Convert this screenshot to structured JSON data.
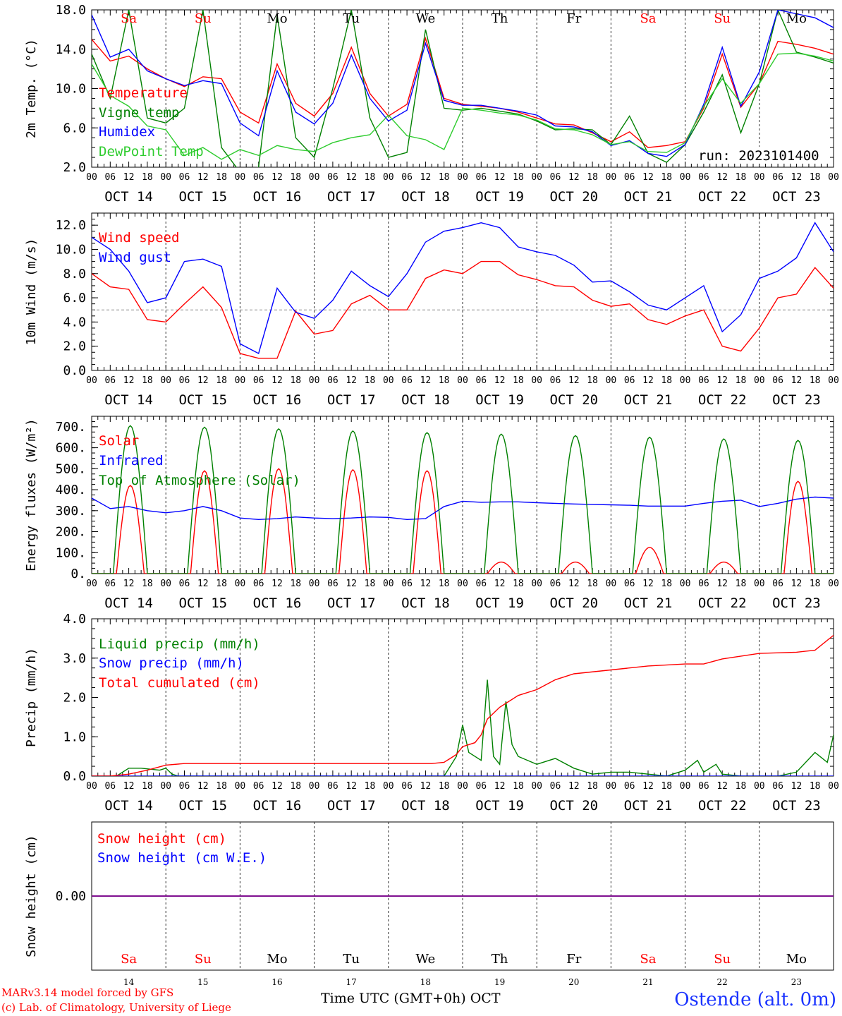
{
  "footer": {
    "credit1": "MARv3.14 model forced by GFS",
    "credit2": "(c) Lab. of Climatology, University of Liege",
    "x_title": "Time UTC (GMT+0h) OCT",
    "station": "Ostende (alt. 0m)"
  },
  "colors": {
    "red": "#ff0000",
    "green": "#008000",
    "blue": "#0000ff",
    "lightgreen": "#2ecc2e",
    "purple": "#800080",
    "grid": "#555555"
  },
  "chart_data": [
    {
      "type": "line",
      "ylabel": "2m Temp. (°C)",
      "ylim": [
        2,
        18
      ],
      "yticks": [
        "2.0",
        "6.0",
        "10.0",
        "14.0",
        "18.0"
      ],
      "run_label": "run: 2023101400",
      "day_letters": [
        "Sa",
        "Su",
        "Mo",
        "Tu",
        "We",
        "Th",
        "Fr",
        "Sa",
        "Su",
        "Mo"
      ],
      "day_letter_colors": [
        "red",
        "red",
        "black",
        "black",
        "black",
        "black",
        "black",
        "red",
        "red",
        "black"
      ],
      "hour_labels": [
        "00",
        "06",
        "12",
        "18"
      ],
      "date_labels": [
        "OCT 14",
        "OCT 15",
        "OCT 16",
        "OCT 17",
        "OCT 18",
        "OCT 19",
        "OCT 20",
        "OCT 21",
        "OCT 22",
        "OCT 23"
      ],
      "x_unit": "hours since 2023-10-14 00 UTC",
      "series": [
        {
          "name": "Temperature",
          "color": "red",
          "x": [
            0,
            6,
            12,
            18,
            24,
            30,
            36,
            42,
            48,
            54,
            60,
            66,
            72,
            78,
            84,
            90,
            96,
            102,
            108,
            114,
            120,
            126,
            132,
            138,
            144,
            150,
            156,
            162,
            168,
            174,
            180,
            186,
            192,
            198,
            204,
            210,
            216,
            222,
            228,
            234,
            240
          ],
          "values": [
            15,
            12.8,
            13.3,
            12,
            11,
            10.2,
            11.2,
            11,
            7.6,
            6.5,
            12.5,
            8.5,
            7.2,
            9.5,
            14.2,
            9.5,
            7.2,
            8.4,
            15.1,
            9,
            8.4,
            8.2,
            8,
            7.6,
            7,
            6.4,
            6.3,
            5.5,
            4.6,
            5.6,
            4,
            4.2,
            4.6,
            8,
            13.5,
            8.1,
            10.5,
            14.8,
            14.5,
            14.1,
            13.5
          ]
        },
        {
          "name": "Vigne temp",
          "color": "green",
          "x": [
            0,
            6,
            12,
            18,
            24,
            30,
            36,
            42,
            48,
            54,
            60,
            66,
            72,
            78,
            84,
            90,
            96,
            102,
            108,
            114,
            120,
            126,
            132,
            138,
            144,
            150,
            156,
            162,
            168,
            174,
            180,
            186,
            192,
            198,
            204,
            210,
            216,
            222,
            228,
            234,
            240
          ],
          "values": [
            13.5,
            9,
            18,
            7,
            6.5,
            8,
            18,
            4,
            1.5,
            2,
            17.5,
            5,
            3,
            10,
            18,
            7,
            3,
            3.5,
            16,
            8,
            7.8,
            8,
            7.7,
            7.4,
            6.7,
            5.8,
            5.9,
            5.8,
            4.3,
            7.2,
            3.4,
            2.5,
            4.3,
            7.6,
            11.4,
            5.5,
            10.5,
            18,
            13.7,
            13.2,
            12.6
          ]
        },
        {
          "name": "Humidex",
          "color": "blue",
          "x": [
            0,
            6,
            12,
            18,
            24,
            30,
            36,
            42,
            48,
            54,
            60,
            66,
            72,
            78,
            84,
            90,
            96,
            102,
            108,
            114,
            120,
            126,
            132,
            138,
            144,
            150,
            156,
            162,
            168,
            174,
            180,
            186,
            192,
            198,
            204,
            210,
            216,
            222,
            228,
            234,
            240
          ],
          "values": [
            17.5,
            13.2,
            14,
            11.8,
            11,
            10.3,
            10.8,
            10.5,
            6.5,
            5.2,
            11.8,
            7.6,
            6.4,
            8.5,
            13.4,
            9,
            6.7,
            7.8,
            14.6,
            8.8,
            8.3,
            8.3,
            8,
            7.7,
            7.3,
            6.2,
            6.1,
            5.6,
            4.2,
            4.7,
            3.4,
            3.1,
            4.3,
            8.4,
            14.2,
            8.2,
            11.7,
            18,
            17.6,
            17.2,
            16.2
          ]
        },
        {
          "name": "DewPoint Temp",
          "color": "lightgreen",
          "x": [
            0,
            6,
            12,
            18,
            24,
            30,
            36,
            42,
            48,
            54,
            60,
            66,
            72,
            78,
            84,
            90,
            96,
            102,
            108,
            114,
            120,
            126,
            132,
            138,
            144,
            150,
            156,
            162,
            168,
            174,
            180,
            186,
            192,
            198,
            204,
            210,
            216,
            222,
            228,
            234,
            240
          ],
          "values": [
            12.5,
            9.3,
            8.2,
            6.2,
            5.8,
            3.2,
            4,
            2.8,
            3.8,
            3.2,
            4.2,
            3.8,
            3.6,
            4.5,
            5,
            5.3,
            7.3,
            5.2,
            4.8,
            3.8,
            8,
            7.8,
            7.5,
            7.3,
            6.8,
            5.9,
            5.8,
            5.3,
            4.3,
            4.6,
            3.6,
            3.5,
            4.5,
            8.2,
            11,
            8.5,
            10.5,
            13.5,
            13.6,
            13.3,
            12.8
          ]
        }
      ]
    },
    {
      "type": "line",
      "ylabel": "10m Wind (m/s)",
      "ylim": [
        0,
        13
      ],
      "yticks": [
        "0.0",
        "2.0",
        "4.0",
        "6.0",
        "8.0",
        "10.0",
        "12.0"
      ],
      "reference_line": 5,
      "hour_labels": [
        "00",
        "06",
        "12",
        "18"
      ],
      "date_labels": [
        "OCT 14",
        "OCT 15",
        "OCT 16",
        "OCT 17",
        "OCT 18",
        "OCT 19",
        "OCT 20",
        "OCT 21",
        "OCT 22",
        "OCT 23"
      ],
      "series": [
        {
          "name": "Wind speed",
          "color": "red",
          "x": [
            0,
            6,
            12,
            18,
            24,
            30,
            36,
            42,
            48,
            54,
            60,
            66,
            72,
            78,
            84,
            90,
            96,
            102,
            108,
            114,
            120,
            126,
            132,
            138,
            144,
            150,
            156,
            162,
            168,
            174,
            180,
            186,
            192,
            198,
            204,
            210,
            216,
            222,
            228,
            234,
            240
          ],
          "values": [
            8,
            6.9,
            6.7,
            4.2,
            4,
            5.5,
            6.9,
            5.2,
            1.4,
            1,
            1,
            4.9,
            3,
            3.3,
            5.5,
            6.2,
            5,
            5,
            7.6,
            8.3,
            8,
            9,
            9,
            7.9,
            7.5,
            7,
            6.9,
            5.8,
            5.3,
            5.5,
            4.2,
            3.8,
            4.5,
            5,
            2,
            1.6,
            3.5,
            6,
            6.3,
            8.5,
            6.8
          ]
        },
        {
          "name": "Wind gust",
          "color": "blue",
          "x": [
            0,
            6,
            12,
            18,
            24,
            30,
            36,
            42,
            48,
            54,
            60,
            66,
            72,
            78,
            84,
            90,
            96,
            102,
            108,
            114,
            120,
            126,
            132,
            138,
            144,
            150,
            156,
            162,
            168,
            174,
            180,
            186,
            192,
            198,
            204,
            210,
            216,
            222,
            228,
            234,
            240
          ],
          "values": [
            11,
            10,
            8.2,
            5.6,
            6,
            9,
            9.2,
            8.6,
            2.2,
            1.4,
            6.8,
            4.8,
            4.3,
            5.8,
            8.2,
            7,
            6.1,
            8,
            10.6,
            11.5,
            11.8,
            12.2,
            11.8,
            10.2,
            9.8,
            9.5,
            8.7,
            7.3,
            7.4,
            6.5,
            5.4,
            5,
            6,
            7,
            3.2,
            4.6,
            7.6,
            8.2,
            9.3,
            12.2,
            9.8
          ]
        }
      ]
    },
    {
      "type": "line",
      "ylabel": "Energy fluxes (W/m²)",
      "ylim": [
        0,
        750
      ],
      "yticks": [
        "0.",
        "100.",
        "200.",
        "300.",
        "400.",
        "500.",
        "600.",
        "700."
      ],
      "hour_labels": [
        "00",
        "06",
        "12",
        "18"
      ],
      "date_labels": [
        "OCT 14",
        "OCT 15",
        "OCT 16",
        "OCT 17",
        "OCT 18",
        "OCT 19",
        "OCT 20",
        "OCT 21",
        "OCT 22",
        "OCT 23"
      ],
      "series": [
        {
          "name": "Solar",
          "color": "red",
          "daily_peaks": [
            420,
            490,
            500,
            495,
            490,
            55,
            55,
            125,
            55,
            440
          ]
        },
        {
          "name": "Infrared",
          "color": "blue",
          "x": [
            0,
            6,
            12,
            18,
            24,
            30,
            36,
            42,
            48,
            54,
            60,
            66,
            72,
            78,
            84,
            90,
            96,
            102,
            108,
            114,
            120,
            126,
            132,
            138,
            144,
            150,
            156,
            162,
            168,
            174,
            180,
            186,
            192,
            198,
            204,
            210,
            216,
            222,
            228,
            234,
            240
          ],
          "values": [
            360,
            310,
            320,
            300,
            290,
            300,
            320,
            300,
            265,
            258,
            262,
            270,
            265,
            262,
            265,
            270,
            268,
            258,
            262,
            320,
            345,
            340,
            342,
            342,
            338,
            335,
            332,
            330,
            328,
            326,
            322,
            322,
            322,
            335,
            345,
            350,
            320,
            335,
            355,
            365,
            360
          ]
        },
        {
          "name": "Top of Atmosphere (Solar)",
          "color": "green",
          "daily_peaks": [
            705,
            698,
            690,
            680,
            672,
            665,
            658,
            650,
            642,
            635
          ]
        }
      ]
    },
    {
      "type": "line",
      "ylabel": "Precip (mm/h)",
      "ylim": [
        0,
        4
      ],
      "yticks": [
        "0.0",
        "1.0",
        "2.0",
        "3.0",
        "4.0"
      ],
      "hour_labels": [
        "00",
        "06",
        "12",
        "18"
      ],
      "date_labels": [
        "OCT 14",
        "OCT 15",
        "OCT 16",
        "OCT 17",
        "OCT 18",
        "OCT 19",
        "OCT 20",
        "OCT 21",
        "OCT 22",
        "OCT 23"
      ],
      "series": [
        {
          "name": "Liquid precip (mm/h)",
          "color": "green",
          "x": [
            0,
            8,
            12,
            16,
            22,
            24,
            26,
            28,
            114,
            118,
            120,
            122,
            126,
            128,
            130,
            132,
            134,
            136,
            138,
            144,
            150,
            156,
            162,
            168,
            174,
            180,
            186,
            192,
            196,
            198,
            202,
            204,
            210,
            216,
            222,
            228,
            234,
            238,
            240
          ],
          "values": [
            0,
            0,
            0.2,
            0.2,
            0.15,
            0.2,
            0.05,
            0,
            0,
            0.5,
            1.3,
            0.6,
            0.4,
            2.45,
            0.5,
            0.3,
            1.9,
            0.8,
            0.5,
            0.3,
            0.45,
            0.2,
            0.05,
            0.1,
            0.1,
            0.05,
            0,
            0.15,
            0.4,
            0.1,
            0.3,
            0.05,
            0,
            0,
            0,
            0.1,
            0.6,
            0.35,
            1.05
          ]
        },
        {
          "name": "Snow precip (mm/h)",
          "color": "blue",
          "x": [
            0,
            240
          ],
          "values": [
            0,
            0
          ]
        },
        {
          "name": "Total cumulated (cm)",
          "color": "red",
          "x": [
            0,
            6,
            12,
            18,
            24,
            30,
            48,
            72,
            96,
            110,
            114,
            118,
            120,
            124,
            126,
            128,
            132,
            138,
            144,
            150,
            156,
            168,
            180,
            192,
            198,
            204,
            216,
            228,
            234,
            240
          ],
          "values": [
            0,
            0,
            0.05,
            0.15,
            0.28,
            0.32,
            0.32,
            0.32,
            0.32,
            0.32,
            0.35,
            0.55,
            0.75,
            0.85,
            1.05,
            1.45,
            1.75,
            2.05,
            2.2,
            2.45,
            2.6,
            2.7,
            2.8,
            2.85,
            2.85,
            2.98,
            3.12,
            3.15,
            3.2,
            3.58
          ]
        }
      ]
    },
    {
      "type": "line",
      "ylabel": "Snow height (cm)",
      "ylim": [
        -1,
        1
      ],
      "yticks": [
        "0.00"
      ],
      "x_tick_labels": [
        "14",
        "15",
        "16",
        "17",
        "18",
        "19",
        "20",
        "21",
        "22",
        "23"
      ],
      "series": [
        {
          "name": "Snow height (cm)",
          "color": "red",
          "x": [
            0,
            240
          ],
          "values": [
            0,
            0
          ]
        },
        {
          "name": "Snow height (cm W.E.)",
          "color": "blue",
          "x": [
            0,
            240
          ],
          "values": [
            0,
            0
          ]
        }
      ]
    }
  ]
}
